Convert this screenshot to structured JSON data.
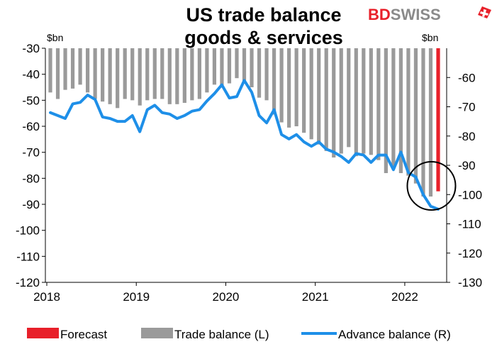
{
  "chart_data": {
    "type": "bar",
    "title_lines": [
      "US trade balance",
      "goods & services"
    ],
    "left_unit": "$bn",
    "right_unit": "$bn",
    "ylim_left": [
      -120,
      -30
    ],
    "ylim_right": [
      -130,
      -50
    ],
    "left_ticks": [
      "-30",
      "-40",
      "-50",
      "-60",
      "-70",
      "-80",
      "-90",
      "-100",
      "-110",
      "-120"
    ],
    "right_ticks": [
      "-60",
      "-70",
      "-80",
      "-90",
      "-100",
      "-110",
      "-120",
      "-130"
    ],
    "x_ticks": [
      "2018",
      "2019",
      "2020",
      "2021",
      "2022"
    ],
    "x_range": [
      "2018-01",
      "2022-05"
    ],
    "grid": false,
    "legend_position": "bottom",
    "series": [
      {
        "name": "Trade balance (L)",
        "type": "bar",
        "axis": "left",
        "color": "#9a9a9a",
        "x": [
          "2018-01",
          "2018-02",
          "2018-03",
          "2018-04",
          "2018-05",
          "2018-06",
          "2018-07",
          "2018-08",
          "2018-09",
          "2018-10",
          "2018-11",
          "2018-12",
          "2019-01",
          "2019-02",
          "2019-03",
          "2019-04",
          "2019-05",
          "2019-06",
          "2019-07",
          "2019-08",
          "2019-09",
          "2019-10",
          "2019-11",
          "2019-12",
          "2020-01",
          "2020-02",
          "2020-03",
          "2020-04",
          "2020-05",
          "2020-06",
          "2020-07",
          "2020-08",
          "2020-09",
          "2020-10",
          "2020-11",
          "2020-12",
          "2021-01",
          "2021-02",
          "2021-03",
          "2021-04",
          "2021-05",
          "2021-06",
          "2021-07",
          "2021-08",
          "2021-09",
          "2021-10",
          "2021-11",
          "2021-12",
          "2022-01",
          "2022-02",
          "2022-03",
          "2022-04"
        ],
        "values": [
          -47,
          -49.5,
          -46,
          -45.5,
          -44,
          -47,
          -49.5,
          -50.5,
          -51.5,
          -53,
          -49.5,
          -50,
          -52,
          -50,
          -49.5,
          -49.5,
          -51.5,
          -51.5,
          -51,
          -50,
          -49.5,
          -47,
          -44,
          -45,
          -43.5,
          -41.5,
          -42.5,
          -45,
          -49,
          -50,
          -55.5,
          -58.5,
          -60.5,
          -60,
          -62.5,
          -65,
          -67,
          -69.5,
          -72,
          -70.5,
          -68,
          -71.5,
          -70.5,
          -71,
          -73,
          -78,
          -75.5,
          -78,
          -79,
          -82,
          -87,
          -87
        ],
        "forecast": false
      },
      {
        "name": "Forecast",
        "type": "bar",
        "axis": "left",
        "color": "#e8202a",
        "x": [
          "2022-05"
        ],
        "values": [
          -85
        ],
        "forecast": true
      },
      {
        "name": "Advance balance (R)",
        "type": "line",
        "axis": "right",
        "color": "#1e8fe8",
        "x": [
          "2018-01",
          "2018-02",
          "2018-03",
          "2018-04",
          "2018-05",
          "2018-06",
          "2018-07",
          "2018-08",
          "2018-09",
          "2018-10",
          "2018-11",
          "2018-12",
          "2019-01",
          "2019-02",
          "2019-03",
          "2019-04",
          "2019-05",
          "2019-06",
          "2019-07",
          "2019-08",
          "2019-09",
          "2019-10",
          "2019-11",
          "2019-12",
          "2020-01",
          "2020-02",
          "2020-03",
          "2020-04",
          "2020-05",
          "2020-06",
          "2020-07",
          "2020-08",
          "2020-09",
          "2020-10",
          "2020-11",
          "2020-12",
          "2021-01",
          "2021-02",
          "2021-03",
          "2021-04",
          "2021-05",
          "2021-06",
          "2021-07",
          "2021-08",
          "2021-09",
          "2021-10",
          "2021-11",
          "2021-12",
          "2022-01",
          "2022-02",
          "2022-03",
          "2022-04",
          "2022-05"
        ],
        "values": [
          -72,
          -73,
          -74,
          -69,
          -68.5,
          -66,
          -67.5,
          -73.5,
          -74,
          -75,
          -75,
          -73,
          -78.5,
          -71,
          -69.5,
          -72,
          -72.5,
          -74,
          -73,
          -71.5,
          -71,
          -68,
          -65.5,
          -62.5,
          -67,
          -66.5,
          -61,
          -65,
          -73,
          -75.5,
          -71,
          -79.5,
          -81,
          -79.5,
          -82,
          -83.5,
          -82,
          -84.5,
          -85.5,
          -87,
          -89,
          -86,
          -86.5,
          -89,
          -86.5,
          -86.5,
          -91.5,
          -85.5,
          -92.5,
          -94,
          -100,
          -104,
          -105
        ]
      }
    ],
    "annotations": [
      {
        "kind": "circle",
        "around": "2022-04"
      }
    ],
    "legend": [
      {
        "label": "Forecast",
        "color": "#e8202a",
        "kind": "swatch"
      },
      {
        "label": "Trade balance (L)",
        "color": "#9a9a9a",
        "kind": "swatch"
      },
      {
        "label": "Advance balance (R)",
        "color": "#1e8fe8",
        "kind": "line"
      }
    ]
  },
  "brand": {
    "logo_text": "BDSWISS",
    "logo_color": "#e8202a",
    "flag_color": "#e8202a"
  },
  "colors": {
    "axis": "#000000",
    "bar": "#9a9a9a",
    "forecast": "#e8202a",
    "line": "#1e8fe8"
  }
}
